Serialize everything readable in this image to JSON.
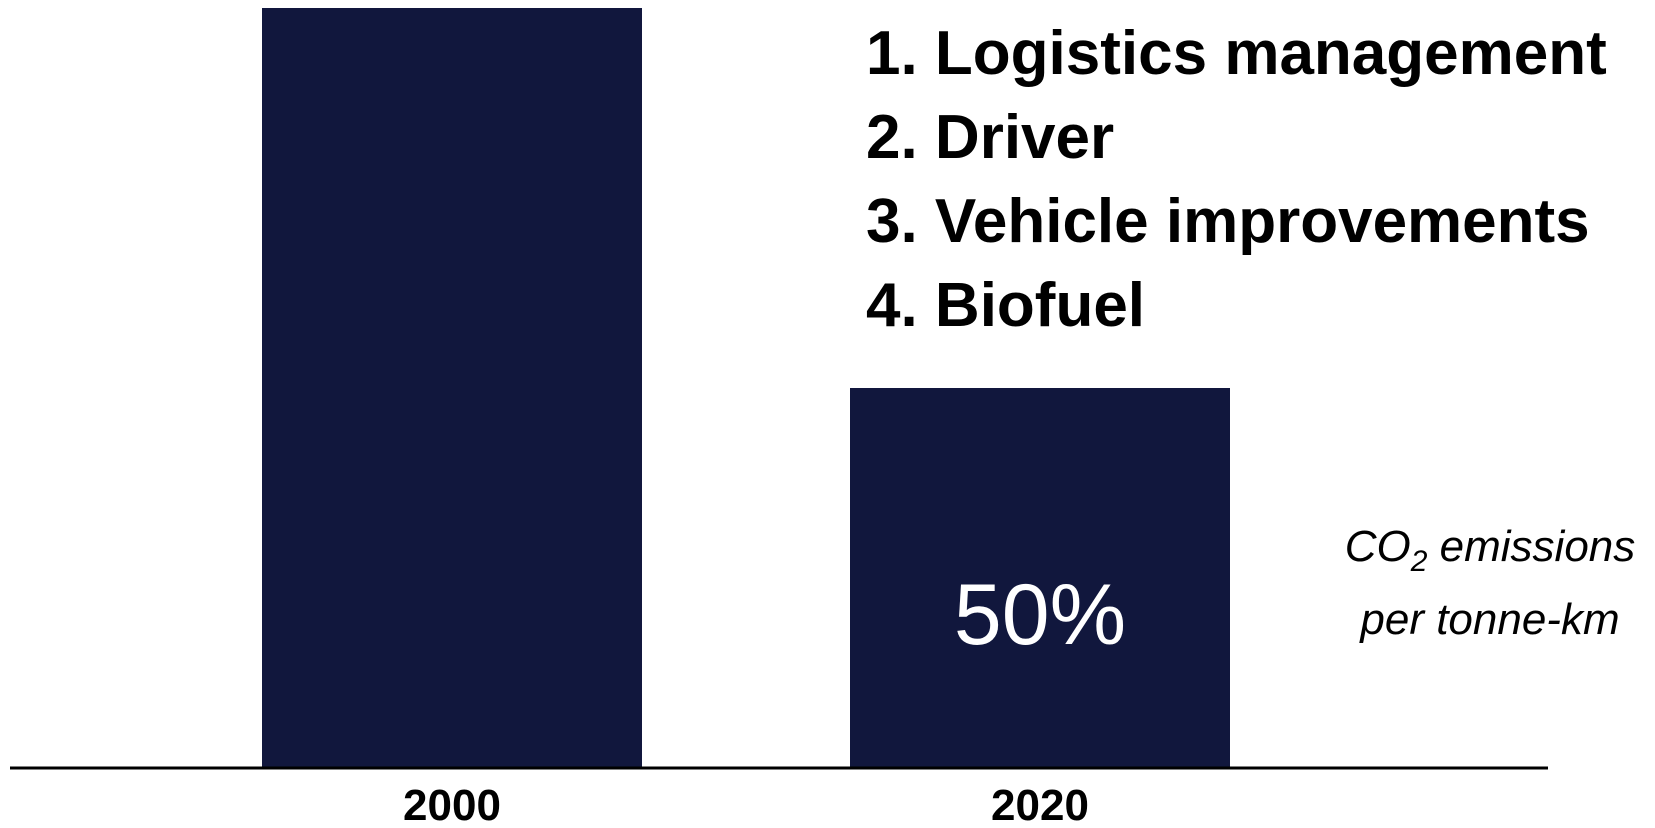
{
  "chart_data": {
    "type": "bar",
    "categories": [
      "2000",
      "2020"
    ],
    "values": [
      100,
      50
    ],
    "value_unit": "%",
    "data_labels": [
      "",
      "50%"
    ],
    "ylim": [
      0,
      100
    ],
    "grid": false,
    "legend": "none",
    "xlabel": "",
    "ylabel": "",
    "title": "",
    "colors": {
      "bar": "#11173d",
      "axis": "#000000",
      "data_label": "#ffffff",
      "text": "#000000"
    }
  },
  "annotations": {
    "measures": [
      "1. Logistics management",
      "2. Driver",
      "3. Vehicle improvements",
      "4. Biofuel"
    ],
    "unit_label": {
      "line1_prefix": "CO",
      "line1_subscript": "2",
      "line1_suffix": " emissions",
      "line2": "per tonne-km"
    }
  }
}
